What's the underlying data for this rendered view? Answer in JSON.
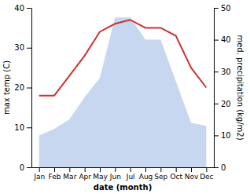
{
  "chart_data": {
    "type": "line",
    "xlabel": "date (month)",
    "ylabel": "max temp (C)",
    "y2label": "med. precipitation (kg/m2)",
    "categories": [
      "Jan",
      "Feb",
      "Mar",
      "Apr",
      "May",
      "Jun",
      "Jul",
      "Aug",
      "Sep",
      "Oct",
      "Nov",
      "Dec"
    ],
    "series": [
      {
        "type": "area",
        "axis": "y2",
        "color": "#aec6e8",
        "values": [
          10,
          12,
          15,
          22,
          28,
          47,
          47,
          40,
          40,
          27,
          14,
          13
        ]
      },
      {
        "type": "line",
        "color": "#cc3333",
        "values": [
          18,
          18,
          23,
          28,
          34,
          36,
          37,
          35,
          35,
          33,
          25,
          20
        ]
      }
    ],
    "ylim": [
      0,
      40
    ],
    "yticks": [
      0,
      10,
      20,
      30,
      40
    ],
    "y2lim": [
      0,
      50
    ],
    "y2ticks": [
      0,
      10,
      20,
      30,
      40,
      50
    ]
  }
}
